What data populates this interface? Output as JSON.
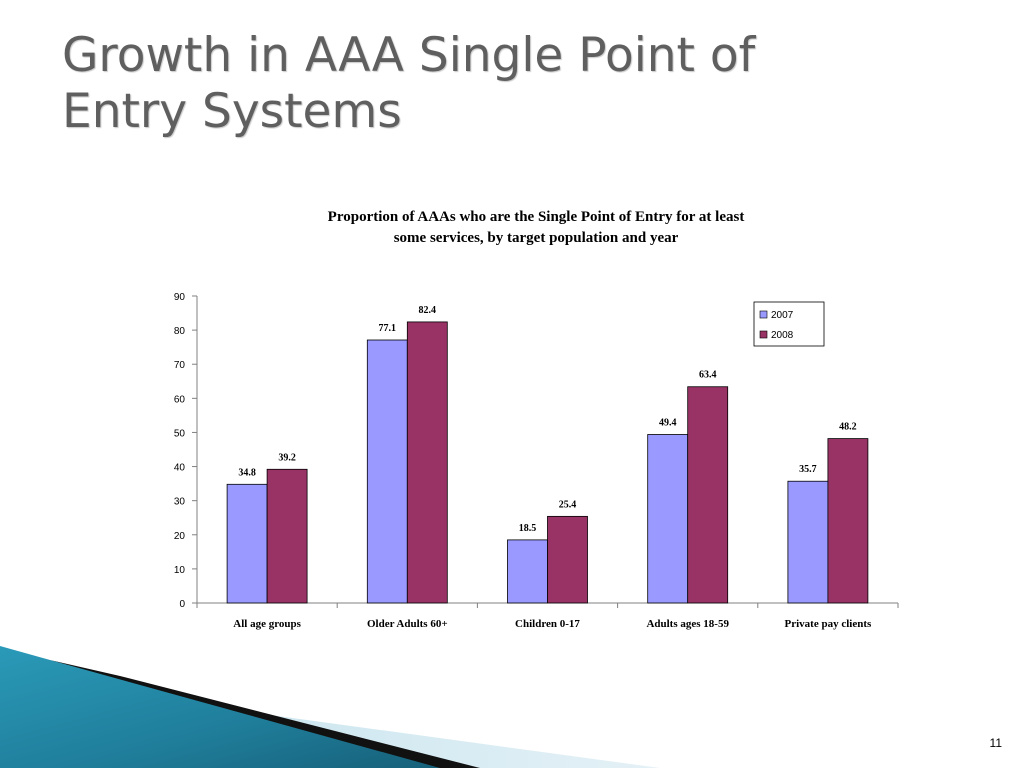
{
  "slide": {
    "title_line1": "Growth in AAA Single Point of",
    "title_line2": "Entry Systems",
    "page_number": "11"
  },
  "chart_data": {
    "type": "bar",
    "title_line1": "Proportion of  AAAs who are the Single Point of  Entry for at least",
    "title_line2": "some services, by target population and year",
    "categories": [
      "All age groups",
      "Older Adults 60+",
      "Children 0-17",
      "Adults ages 18-59",
      "Private pay clients"
    ],
    "series": [
      {
        "name": "2007",
        "values": [
          34.8,
          77.1,
          18.5,
          49.4,
          35.7
        ],
        "color": "#9999ff"
      },
      {
        "name": "2008",
        "values": [
          39.2,
          82.4,
          25.4,
          63.4,
          48.2
        ],
        "color": "#993366"
      }
    ],
    "ylim": [
      0,
      90
    ],
    "yticks": [
      0,
      10,
      20,
      30,
      40,
      50,
      60,
      70,
      80,
      90
    ],
    "legend_position": "top-right",
    "grid": false
  }
}
